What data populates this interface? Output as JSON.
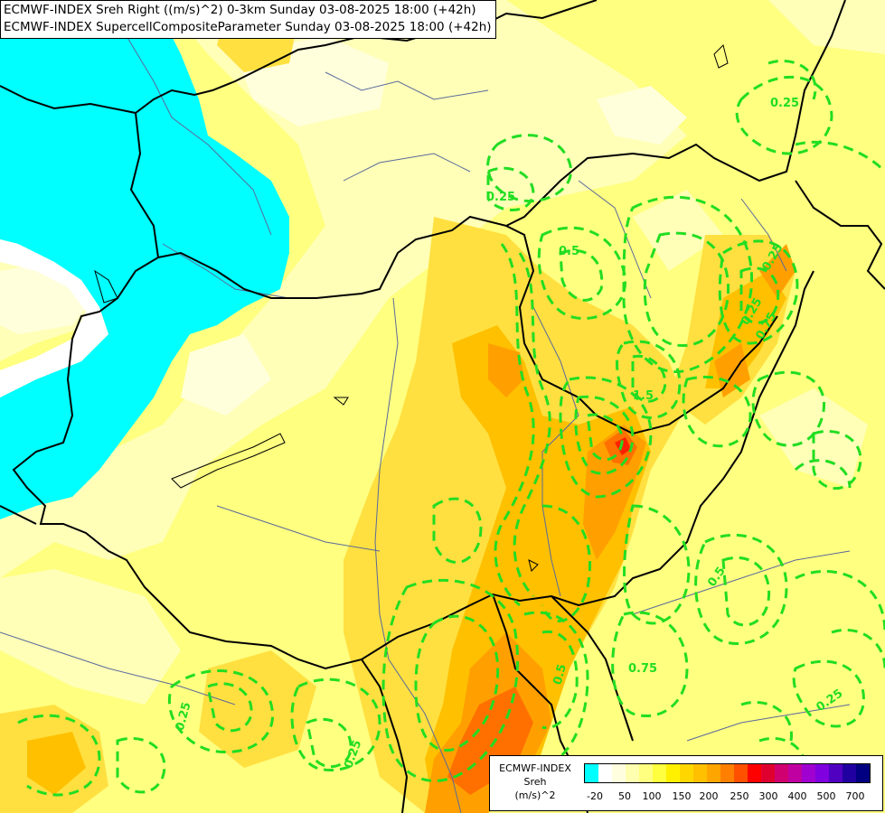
{
  "title": {
    "line1": "ECMWF-INDEX Sreh Right ((m/s)^2) 0-3km Sunday 03-08-2025 18:00 (+42h)",
    "line2": "ECMWF-INDEX SupercellCompositeParameter Sunday 03-08-2025 18:00 (+42h)"
  },
  "legend": {
    "line1": "ECMWF-INDEX",
    "line2": "Sreh",
    "line3": "(m/s)^2",
    "colors": [
      "#00ffff",
      "#ffffff",
      "#ffffe0",
      "#ffffb0",
      "#ffff80",
      "#ffff40",
      "#fff000",
      "#ffd700",
      "#ffc000",
      "#ffa500",
      "#ff8000",
      "#ff5000",
      "#ff0000",
      "#e00030",
      "#d00070",
      "#c000a0",
      "#a000d0",
      "#8000e0",
      "#5000c0",
      "#2000a0",
      "#000080"
    ],
    "ticks": [
      "-20",
      "50",
      "100",
      "150",
      "200",
      "250",
      "300",
      "400",
      "500",
      "700"
    ]
  },
  "contour_labels": [
    "0.25",
    "0.25",
    "0.25",
    "0.5",
    "1.5",
    "0.25",
    "0.5",
    "0.25",
    "0.75",
    "0.5",
    "0.25",
    "0.75",
    "0.25"
  ],
  "colors": {
    "negative_area": "#00ffff",
    "contour_line": "#22dd22",
    "borders": "#000000",
    "rivers": "#5a6a9a"
  }
}
